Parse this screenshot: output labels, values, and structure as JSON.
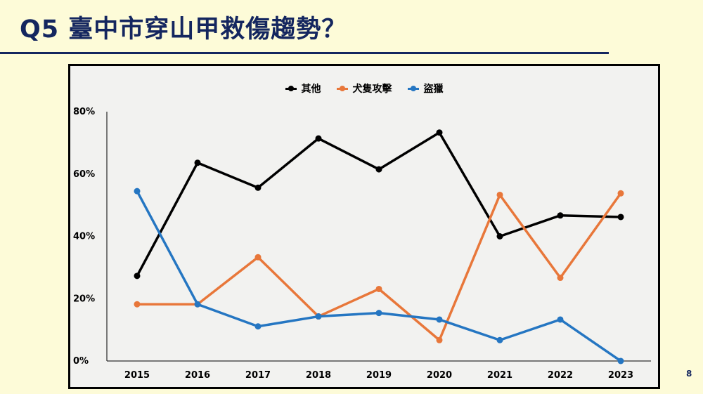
{
  "slide": {
    "title": "Q5 臺中市穿山甲救傷趨勢？",
    "page_number": "8"
  },
  "colors": {
    "title": "#14265f",
    "background": "#fdfbd8",
    "series": [
      "#000000",
      "#e8773a",
      "#2576c2"
    ]
  },
  "chart_data": {
    "type": "line",
    "title": "",
    "xlabel": "",
    "ylabel": "",
    "categories": [
      "2015",
      "2016",
      "2017",
      "2018",
      "2019",
      "2020",
      "2021",
      "2022",
      "2023"
    ],
    "series": [
      {
        "name": "其他",
        "values": [
          27.3,
          63.6,
          55.6,
          71.4,
          61.5,
          73.3,
          40.0,
          46.7,
          46.2
        ]
      },
      {
        "name": "犬隻攻擊",
        "values": [
          18.2,
          18.2,
          33.3,
          14.3,
          23.1,
          6.7,
          53.3,
          26.7,
          53.8
        ]
      },
      {
        "name": "盜獵",
        "values": [
          54.5,
          18.2,
          11.1,
          14.3,
          15.4,
          13.3,
          6.7,
          13.3,
          0.0
        ]
      }
    ],
    "ylim": [
      0,
      80
    ],
    "yticks": [
      "0%",
      "20%",
      "40%",
      "60%",
      "80%"
    ],
    "grid": false,
    "legend": "top-center"
  }
}
